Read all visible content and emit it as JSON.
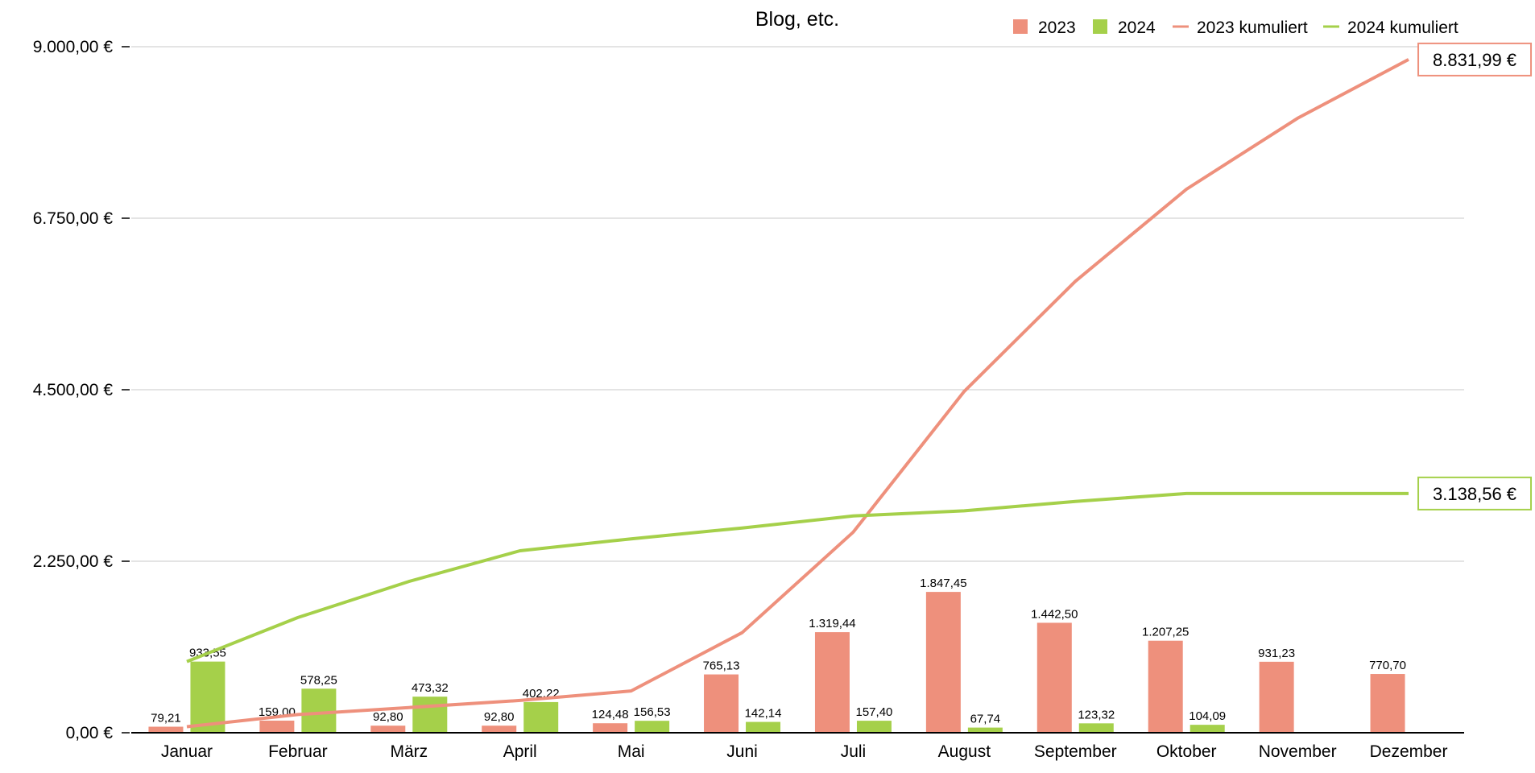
{
  "chart_data": {
    "type": "bar",
    "title": "Blog, etc.",
    "categories": [
      "Januar",
      "Februar",
      "März",
      "April",
      "Mai",
      "Juni",
      "Juli",
      "August",
      "September",
      "Oktober",
      "November",
      "Dezember"
    ],
    "series": [
      {
        "name": "2023",
        "type": "bar",
        "color": "#ee907c",
        "values": [
          79.21,
          159.0,
          92.8,
          92.8,
          124.48,
          765.13,
          1319.44,
          1847.45,
          1442.5,
          1207.25,
          931.23,
          770.7
        ],
        "labels": [
          "79,21",
          "159,00",
          "92,80",
          "92,80",
          "124,48",
          "765,13",
          "1.319,44",
          "1.847,45",
          "1.442,50",
          "1.207,25",
          "931,23",
          "770,70"
        ]
      },
      {
        "name": "2024",
        "type": "bar",
        "color": "#a5d04a",
        "values": [
          933.55,
          578.25,
          473.32,
          402.22,
          156.53,
          142.14,
          157.4,
          67.74,
          123.32,
          104.09,
          null,
          null
        ],
        "labels": [
          "933,55",
          "578,25",
          "473,32",
          "402,22",
          "156,53",
          "142,14",
          "157,40",
          "67,74",
          "123,32",
          "104,09",
          "",
          ""
        ]
      },
      {
        "name": "2023 kumuliert",
        "type": "line",
        "color": "#ee907c",
        "values": [
          79.21,
          238.21,
          331.01,
          423.81,
          548.29,
          1313.42,
          2632.86,
          4480.31,
          5922.81,
          7130.06,
          8061.29,
          8831.99
        ],
        "end_label": "8.831,99 €"
      },
      {
        "name": "2024 kumuliert",
        "type": "line",
        "color": "#a5d04a",
        "values": [
          933.55,
          1511.8,
          1985.12,
          2387.34,
          2543.87,
          2686.01,
          2843.41,
          2911.15,
          3034.47,
          3138.56,
          3138.56,
          3138.56
        ],
        "end_label": "3.138,56 €"
      }
    ],
    "ylim": [
      0,
      9000
    ],
    "yticks": [
      0,
      2250,
      4500,
      6750,
      9000
    ],
    "ytick_labels": [
      "0,00 €",
      "2.250,00 €",
      "4.500,00 €",
      "6.750,00 €",
      "9.000,00 €"
    ],
    "grid": true,
    "legend": "top-right"
  }
}
